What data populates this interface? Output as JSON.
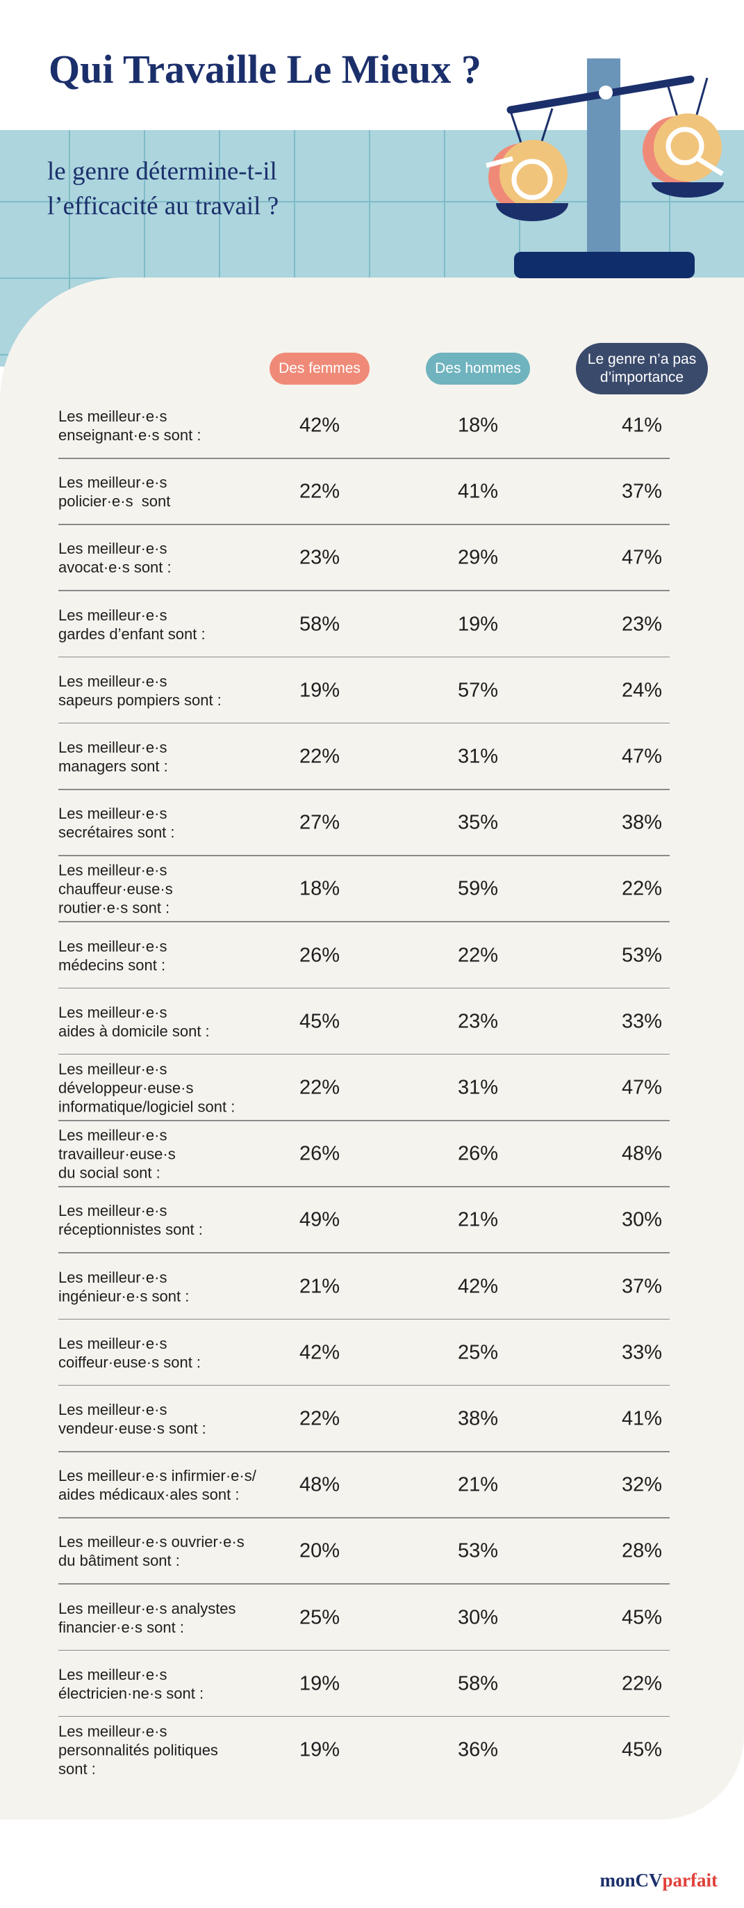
{
  "header": {
    "title": "Qui Travaille Le Mieux ?",
    "subtitle": "le genre détermine-t-il\nl’efficacité au travail ?"
  },
  "table": {
    "headers": [
      "Des femmes",
      "Des hommes",
      "Le genre n’a pas\nd’importance"
    ],
    "rows": [
      [
        "Les meilleur·e·s\nenseignant·e·s sont :",
        "42%",
        "18%",
        "41%"
      ],
      [
        "Les meilleur·e·s\npolicier·e·s  sont",
        "22%",
        "41%",
        "37%"
      ],
      [
        "Les meilleur·e·s\navocat·e·s sont :",
        "23%",
        "29%",
        "47%"
      ],
      [
        "Les meilleur·e·s\ngardes d’enfant sont :",
        "58%",
        "19%",
        "23%"
      ],
      [
        "Les meilleur·e·s\nsapeurs pompiers sont :",
        "19%",
        "57%",
        "24%"
      ],
      [
        "Les meilleur·e·s\nmanagers sont :",
        "22%",
        "31%",
        "47%"
      ],
      [
        "Les meilleur·e·s\nsecrétaires sont :",
        "27%",
        "35%",
        "38%"
      ],
      [
        "Les meilleur·e·s\nchauffeur·euse·s\nroutier·e·s sont :",
        "18%",
        "59%",
        "22%"
      ],
      [
        "Les meilleur·e·s\nmédecins sont :",
        "26%",
        "22%",
        "53%"
      ],
      [
        "Les meilleur·e·s\naides à domicile sont :",
        "45%",
        "23%",
        "33%"
      ],
      [
        "Les meilleur·e·s\ndéveloppeur·euse·s\ninformatique/logiciel sont :",
        "22%",
        "31%",
        "47%"
      ],
      [
        "Les meilleur·e·s\ntravailleur·euse·s\ndu social sont :",
        "26%",
        "26%",
        "48%"
      ],
      [
        "Les meilleur·e·s\nréceptionnistes sont :",
        "49%",
        "21%",
        "30%"
      ],
      [
        "Les meilleur·e·s\ningénieur·e·s sont :",
        "21%",
        "42%",
        "37%"
      ],
      [
        "Les meilleur·e·s\ncoiffeur·euse·s sont :",
        "42%",
        "25%",
        "33%"
      ],
      [
        "Les meilleur·e·s\nvendeur·euse·s sont :",
        "22%",
        "38%",
        "41%"
      ],
      [
        "Les meilleur·e·s infirmier·e·s/\naides médicaux·ales sont :",
        "48%",
        "21%",
        "32%"
      ],
      [
        "Les meilleur·e·s ouvrier·e·s\ndu bâtiment sont :",
        "20%",
        "53%",
        "28%"
      ],
      [
        "Les meilleur·e·s analystes\nfinancier·e·s sont :",
        "25%",
        "30%",
        "45%"
      ],
      [
        "Les meilleur·e·s\nélectricien·ne·s sont :",
        "19%",
        "58%",
        "22%"
      ],
      [
        "Les meilleur·e·s\npersonnalités politiques\nsont :",
        "19%",
        "36%",
        "45%"
      ]
    ]
  },
  "logo": {
    "part1": "monCV",
    "part2": "parfait"
  }
}
